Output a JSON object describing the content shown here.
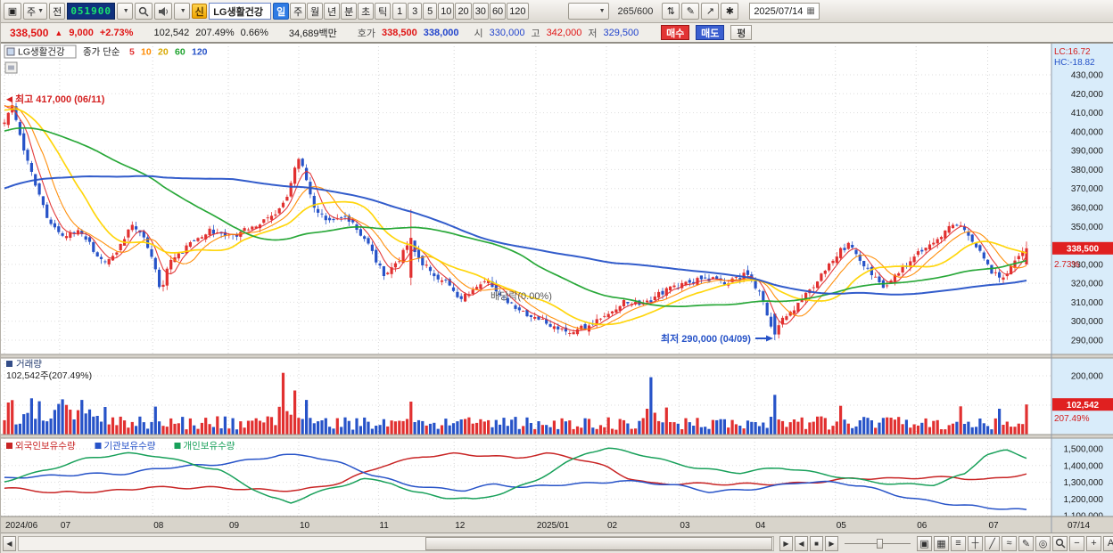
{
  "icons": {
    "dropdown": "▼",
    "left_arrow": "◀",
    "right_arrow": "▶",
    "up_triangle": "▲",
    "calendar": "▦",
    "window": "▣"
  },
  "toolbar": {
    "chart_kind": "주",
    "prev_label": "전",
    "code": "051900",
    "new_badge": "신",
    "stock_name": "LG생활건강",
    "periods": [
      {
        "label": "일",
        "active": true
      },
      {
        "label": "주",
        "active": false
      },
      {
        "label": "월",
        "active": false
      },
      {
        "label": "년",
        "active": false
      },
      {
        "label": "분",
        "active": false
      },
      {
        "label": "초",
        "active": false
      },
      {
        "label": "틱",
        "active": false
      }
    ],
    "intervals": [
      "1",
      "3",
      "5",
      "10",
      "20",
      "30",
      "60",
      "120"
    ],
    "candle_counter": "265/600",
    "date": "2025/07/14",
    "tools": [
      {
        "name": "compare-chart-icon",
        "glyph": "⇅"
      },
      {
        "name": "draw-tool-icon",
        "glyph": "✎"
      },
      {
        "name": "indicator-icon",
        "glyph": "↗"
      },
      {
        "name": "settings-gear-icon",
        "glyph": "✱"
      }
    ]
  },
  "quote": {
    "price": "338,500",
    "change_arrow": "▲",
    "change": "9,000",
    "change_pct": "+2.73%",
    "volume": "102,542",
    "turnover": "207.49%",
    "rate2": "0.66%",
    "value": "34,689백만",
    "hoga_label": "호가",
    "ask": "338,500",
    "bid": "338,000",
    "open_label": "시",
    "open": "330,000",
    "high_label": "고",
    "high": "342,000",
    "low_label": "저",
    "low": "329,500",
    "buy": "매수",
    "sell": "매도",
    "avg": "평"
  },
  "legend": {
    "stock_name": "LG생활건강",
    "ma_label": "종가 단순",
    "ma_items": [
      {
        "label": "5",
        "color": "#e13030"
      },
      {
        "label": "10",
        "color": "#ff8a00"
      },
      {
        "label": "20",
        "color": "#d8a800"
      },
      {
        "label": "60",
        "color": "#1ea32e"
      },
      {
        "label": "120",
        "color": "#2753c8"
      }
    ]
  },
  "annotations": {
    "high": "최고 417,000 (06/11)",
    "low": "최저 290,000 (04/09)",
    "ex_dividend": "배당락(0.00%)",
    "lc": "LC:16.72",
    "hc": "HC:-18.82",
    "price_tag": "338,500",
    "price_tag_pct": "2.73%",
    "volume_tag": "102,542",
    "volume_tag_pct": "207.49%"
  },
  "volume_pane": {
    "title": "거래량",
    "subtitle": "102,542주(207.49%)"
  },
  "bottom": {
    "nav": [
      {
        "name": "nav-play-button",
        "glyph": "▶"
      },
      {
        "name": "nav-back-button",
        "glyph": "◀"
      },
      {
        "name": "nav-stop-button",
        "glyph": "■"
      },
      {
        "name": "nav-forward-button",
        "glyph": "▶"
      }
    ],
    "tools": [
      {
        "name": "window-tile-icon",
        "glyph": "▣"
      },
      {
        "name": "grid-icon",
        "glyph": "▦"
      },
      {
        "name": "list-icon",
        "glyph": "≡"
      },
      {
        "name": "crosshair-icon",
        "glyph": "┼"
      },
      {
        "name": "trendline-icon",
        "glyph": "╱"
      },
      {
        "name": "wave-icon",
        "glyph": "≈"
      },
      {
        "name": "pencil-icon",
        "glyph": "✎"
      },
      {
        "name": "target-icon",
        "glyph": "◎"
      }
    ],
    "zoom_out": "−",
    "zoom_in": "+",
    "auto": "A"
  },
  "chart_data": {
    "type": "candlestick",
    "symbol": "LG생활건강",
    "code": "051900",
    "timeframe": "일",
    "candle_count": 265,
    "price_axis": {
      "min": 290000,
      "max": 430000,
      "step": 10000
    },
    "high_point": {
      "price": 417000,
      "date": "06/11",
      "f": 0.0076
    },
    "low_point": {
      "price": 290000,
      "date": "04/09",
      "f": 0.752
    },
    "last_candle": {
      "open": 330000,
      "high": 342000,
      "low": 329500,
      "close": 338500,
      "volume": 102542
    },
    "ma_periods": [
      5,
      10,
      20,
      60,
      120
    ],
    "ma_colors": [
      "#e13030",
      "#ff8a00",
      "#ffd400",
      "#1ea32e",
      "#2753c8"
    ],
    "up_color": "#e13030",
    "down_color": "#2753c8",
    "price_keypoints": [
      [
        0,
        406000
      ],
      [
        0.007,
        414000
      ],
      [
        0.018,
        392000
      ],
      [
        0.031,
        370000
      ],
      [
        0.044,
        351000
      ],
      [
        0.058,
        344000
      ],
      [
        0.071,
        348000
      ],
      [
        0.084,
        340000
      ],
      [
        0.097,
        331000
      ],
      [
        0.11,
        336000
      ],
      [
        0.123,
        351000
      ],
      [
        0.136,
        344000
      ],
      [
        0.147,
        331000
      ],
      [
        0.152,
        315000
      ],
      [
        0.162,
        331000
      ],
      [
        0.18,
        340000
      ],
      [
        0.202,
        348000
      ],
      [
        0.223,
        344000
      ],
      [
        0.245,
        351000
      ],
      [
        0.263,
        356000
      ],
      [
        0.276,
        366000
      ],
      [
        0.287,
        387000
      ],
      [
        0.293,
        381000
      ],
      [
        0.302,
        362000
      ],
      [
        0.315,
        352000
      ],
      [
        0.333,
        356000
      ],
      [
        0.346,
        348000
      ],
      [
        0.359,
        337000
      ],
      [
        0.372,
        323000
      ],
      [
        0.385,
        331000
      ],
      [
        0.396,
        342000
      ],
      [
        0.407,
        332000
      ],
      [
        0.42,
        324000
      ],
      [
        0.433,
        320000
      ],
      [
        0.446,
        311000
      ],
      [
        0.459,
        318000
      ],
      [
        0.472,
        322000
      ],
      [
        0.485,
        314000
      ],
      [
        0.498,
        308000
      ],
      [
        0.511,
        304000
      ],
      [
        0.524,
        301000
      ],
      [
        0.538,
        297000
      ],
      [
        0.555,
        294000
      ],
      [
        0.572,
        298000
      ],
      [
        0.59,
        305000
      ],
      [
        0.607,
        310000
      ],
      [
        0.625,
        308000
      ],
      [
        0.642,
        315000
      ],
      [
        0.664,
        320000
      ],
      [
        0.686,
        323000
      ],
      [
        0.708,
        320000
      ],
      [
        0.725,
        325000
      ],
      [
        0.736,
        318000
      ],
      [
        0.745,
        307000
      ],
      [
        0.752,
        292000
      ],
      [
        0.763,
        302000
      ],
      [
        0.775,
        308000
      ],
      [
        0.79,
        318000
      ],
      [
        0.806,
        330000
      ],
      [
        0.817,
        337000
      ],
      [
        0.826,
        340000
      ],
      [
        0.838,
        332000
      ],
      [
        0.85,
        323000
      ],
      [
        0.861,
        318000
      ],
      [
        0.872,
        325000
      ],
      [
        0.884,
        330000
      ],
      [
        0.896,
        337000
      ],
      [
        0.912,
        344000
      ],
      [
        0.925,
        349000
      ],
      [
        0.934,
        353000
      ],
      [
        0.945,
        344000
      ],
      [
        0.955,
        337000
      ],
      [
        0.963,
        328000
      ],
      [
        0.974,
        322000
      ],
      [
        0.985,
        328000
      ],
      [
        1,
        338500
      ]
    ],
    "volume_axis": {
      "ticks": [
        100000,
        200000
      ]
    },
    "volume_spikes": [
      [
        0.055,
        120000
      ],
      [
        0.147,
        95000
      ],
      [
        0.273,
        210000
      ],
      [
        0.285,
        150000
      ],
      [
        0.296,
        118000
      ],
      [
        0.396,
        112000
      ],
      [
        0.634,
        195000
      ],
      [
        0.647,
        92000
      ],
      [
        0.752,
        135000
      ],
      [
        0.817,
        98000
      ],
      [
        0.934,
        96000
      ],
      [
        0.974,
        88000
      ]
    ],
    "x_labels": [
      {
        "label": "2024/06",
        "f": 0
      },
      {
        "label": "07",
        "f": 0.054
      },
      {
        "label": "08",
        "f": 0.145
      },
      {
        "label": "09",
        "f": 0.219
      },
      {
        "label": "10",
        "f": 0.288
      },
      {
        "label": "11",
        "f": 0.366
      },
      {
        "label": "12",
        "f": 0.44
      },
      {
        "label": "2025/01",
        "f": 0.52
      },
      {
        "label": "02",
        "f": 0.589
      },
      {
        "label": "03",
        "f": 0.66
      },
      {
        "label": "04",
        "f": 0.734
      },
      {
        "label": "05",
        "f": 0.813
      },
      {
        "label": "06",
        "f": 0.892
      },
      {
        "label": "07",
        "f": 0.962
      }
    ],
    "x_end_label": "07/14",
    "ownership": {
      "axis": {
        "min": 1100000,
        "max": 1500000,
        "step": 100000
      },
      "series": [
        {
          "name": "외국인보유수량",
          "color": "#c82424",
          "points": [
            [
              0,
              1265000
            ],
            [
              0.05,
              1228000
            ],
            [
              0.1,
              1252000
            ],
            [
              0.14,
              1278000
            ],
            [
              0.18,
              1262000
            ],
            [
              0.24,
              1255000
            ],
            [
              0.29,
              1262000
            ],
            [
              0.33,
              1300000
            ],
            [
              0.37,
              1390000
            ],
            [
              0.41,
              1455000
            ],
            [
              0.44,
              1478000
            ],
            [
              0.47,
              1468000
            ],
            [
              0.5,
              1442000
            ],
            [
              0.53,
              1462000
            ],
            [
              0.55,
              1448000
            ],
            [
              0.57,
              1425000
            ],
            [
              0.59,
              1395000
            ],
            [
              0.61,
              1335000
            ],
            [
              0.63,
              1302000
            ],
            [
              0.67,
              1286000
            ],
            [
              0.71,
              1280000
            ],
            [
              0.75,
              1294000
            ],
            [
              0.79,
              1308000
            ],
            [
              0.83,
              1320000
            ],
            [
              0.87,
              1312000
            ],
            [
              0.9,
              1328000
            ],
            [
              0.93,
              1338000
            ],
            [
              0.96,
              1322000
            ],
            [
              1,
              1345000
            ]
          ]
        },
        {
          "name": "기관보유수량",
          "color": "#2753c8",
          "points": [
            [
              0,
              1315000
            ],
            [
              0.04,
              1338000
            ],
            [
              0.08,
              1360000
            ],
            [
              0.12,
              1352000
            ],
            [
              0.16,
              1380000
            ],
            [
              0.2,
              1402000
            ],
            [
              0.24,
              1442000
            ],
            [
              0.27,
              1468000
            ],
            [
              0.3,
              1452000
            ],
            [
              0.33,
              1402000
            ],
            [
              0.36,
              1342000
            ],
            [
              0.39,
              1300000
            ],
            [
              0.42,
              1272000
            ],
            [
              0.45,
              1252000
            ],
            [
              0.48,
              1280000
            ],
            [
              0.51,
              1262000
            ],
            [
              0.54,
              1290000
            ],
            [
              0.57,
              1302000
            ],
            [
              0.6,
              1312000
            ],
            [
              0.63,
              1292000
            ],
            [
              0.66,
              1270000
            ],
            [
              0.69,
              1242000
            ],
            [
              0.72,
              1262000
            ],
            [
              0.75,
              1282000
            ],
            [
              0.78,
              1300000
            ],
            [
              0.81,
              1290000
            ],
            [
              0.84,
              1272000
            ],
            [
              0.87,
              1232000
            ],
            [
              0.9,
              1200000
            ],
            [
              0.93,
              1172000
            ],
            [
              0.96,
              1142000
            ],
            [
              1,
              1125000
            ]
          ]
        },
        {
          "name": "개인보유수량",
          "color": "#18a05a",
          "points": [
            [
              0,
              1310000
            ],
            [
              0.04,
              1382000
            ],
            [
              0.08,
              1440000
            ],
            [
              0.12,
              1462000
            ],
            [
              0.15,
              1455000
            ],
            [
              0.18,
              1422000
            ],
            [
              0.21,
              1382000
            ],
            [
              0.24,
              1272000
            ],
            [
              0.26,
              1202000
            ],
            [
              0.28,
              1168000
            ],
            [
              0.3,
              1222000
            ],
            [
              0.33,
              1282000
            ],
            [
              0.35,
              1330000
            ],
            [
              0.38,
              1302000
            ],
            [
              0.4,
              1242000
            ],
            [
              0.43,
              1202000
            ],
            [
              0.46,
              1188000
            ],
            [
              0.49,
              1242000
            ],
            [
              0.52,
              1322000
            ],
            [
              0.55,
              1422000
            ],
            [
              0.57,
              1478000
            ],
            [
              0.59,
              1495000
            ],
            [
              0.62,
              1462000
            ],
            [
              0.65,
              1422000
            ],
            [
              0.68,
              1392000
            ],
            [
              0.72,
              1362000
            ],
            [
              0.76,
              1380000
            ],
            [
              0.79,
              1352000
            ],
            [
              0.82,
              1332000
            ],
            [
              0.85,
              1312000
            ],
            [
              0.88,
              1292000
            ],
            [
              0.91,
              1282000
            ],
            [
              0.94,
              1340000
            ],
            [
              0.96,
              1462000
            ],
            [
              0.98,
              1490000
            ],
            [
              1,
              1455000
            ]
          ]
        }
      ]
    }
  }
}
